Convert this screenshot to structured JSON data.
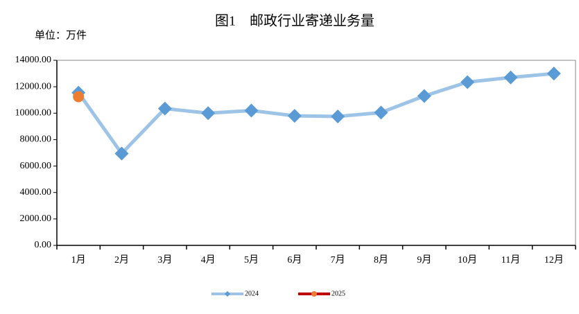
{
  "chart_data": {
    "type": "line",
    "title": "图1　邮政行业寄递业务量",
    "unit_label": "单位：万件",
    "categories": [
      "1月",
      "2月",
      "3月",
      "4月",
      "5月",
      "6月",
      "7月",
      "8月",
      "9月",
      "10月",
      "11月",
      "12月"
    ],
    "series": [
      {
        "name": "2024",
        "color": "#9dc3e6",
        "marker_color": "#5b9bd5",
        "marker": "diamond",
        "values": [
          11550,
          6950,
          10350,
          10000,
          10200,
          9800,
          9750,
          10050,
          11300,
          12350,
          12700,
          13000
        ]
      },
      {
        "name": "2025",
        "color": "#c00000",
        "marker_color": "#ed7d31",
        "marker": "circle",
        "values": [
          11250,
          null,
          null,
          null,
          null,
          null,
          null,
          null,
          null,
          null,
          null,
          null
        ]
      }
    ],
    "ylim": [
      0,
      14000
    ],
    "yticks": [
      {
        "value": 0,
        "label": "0.00"
      },
      {
        "value": 2000,
        "label": "2000.00"
      },
      {
        "value": 4000,
        "label": "4000.00"
      },
      {
        "value": 6000,
        "label": "6000.00"
      },
      {
        "value": 8000,
        "label": "8000.00"
      },
      {
        "value": 10000,
        "label": "10000.00"
      },
      {
        "value": 12000,
        "label": "12000.00"
      },
      {
        "value": 14000,
        "label": "14000.00"
      }
    ],
    "legend": "bottom"
  }
}
